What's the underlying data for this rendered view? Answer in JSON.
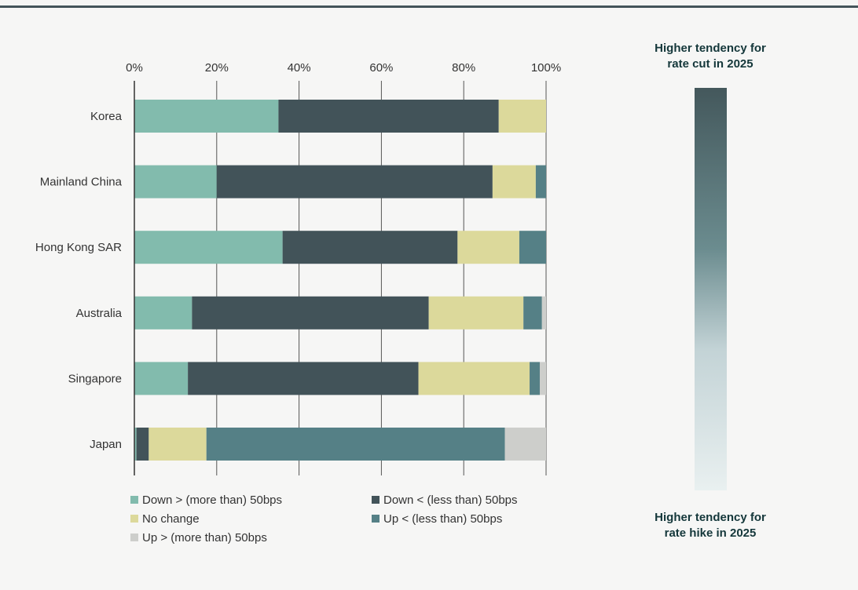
{
  "chart_data": {
    "type": "bar",
    "orientation": "horizontal",
    "stacked": true,
    "x_ticks": [
      "0%",
      "20%",
      "40%",
      "60%",
      "80%",
      "100%"
    ],
    "xlim": [
      0,
      100
    ],
    "grid": true,
    "categories": [
      "Korea",
      "Mainland China",
      "Hong Kong SAR",
      "Australia",
      "Singapore",
      "Japan"
    ],
    "series": [
      {
        "name": "Down > (more than) 50bps",
        "color": "#82bbad",
        "values": [
          35,
          20,
          36,
          14,
          13,
          0.5
        ]
      },
      {
        "name": "Down < (less than) 50bps",
        "color": "#425359",
        "values": [
          53.5,
          67,
          42.5,
          57.5,
          56,
          3
        ]
      },
      {
        "name": "No change",
        "color": "#dcd99b",
        "values": [
          11.5,
          10.5,
          15,
          23,
          27,
          14
        ]
      },
      {
        "name": "Up < (less than) 50bps",
        "color": "#558086",
        "values": [
          0,
          2.5,
          6.5,
          4.5,
          2.5,
          72.5
        ]
      },
      {
        "name": "Up > (more than) 50bps",
        "color": "#cdcecb",
        "values": [
          0,
          0,
          0,
          1,
          1.5,
          10
        ]
      }
    ],
    "legend_placement": "bottom"
  },
  "scale": {
    "top_label": [
      "Higher tendency for",
      "rate cut in 2025"
    ],
    "bottom_label": [
      "Higher tendency for",
      "rate hike in 2025"
    ],
    "gradient_top_color": "#44585c",
    "gradient_bottom_color": "#e9f0f0"
  }
}
